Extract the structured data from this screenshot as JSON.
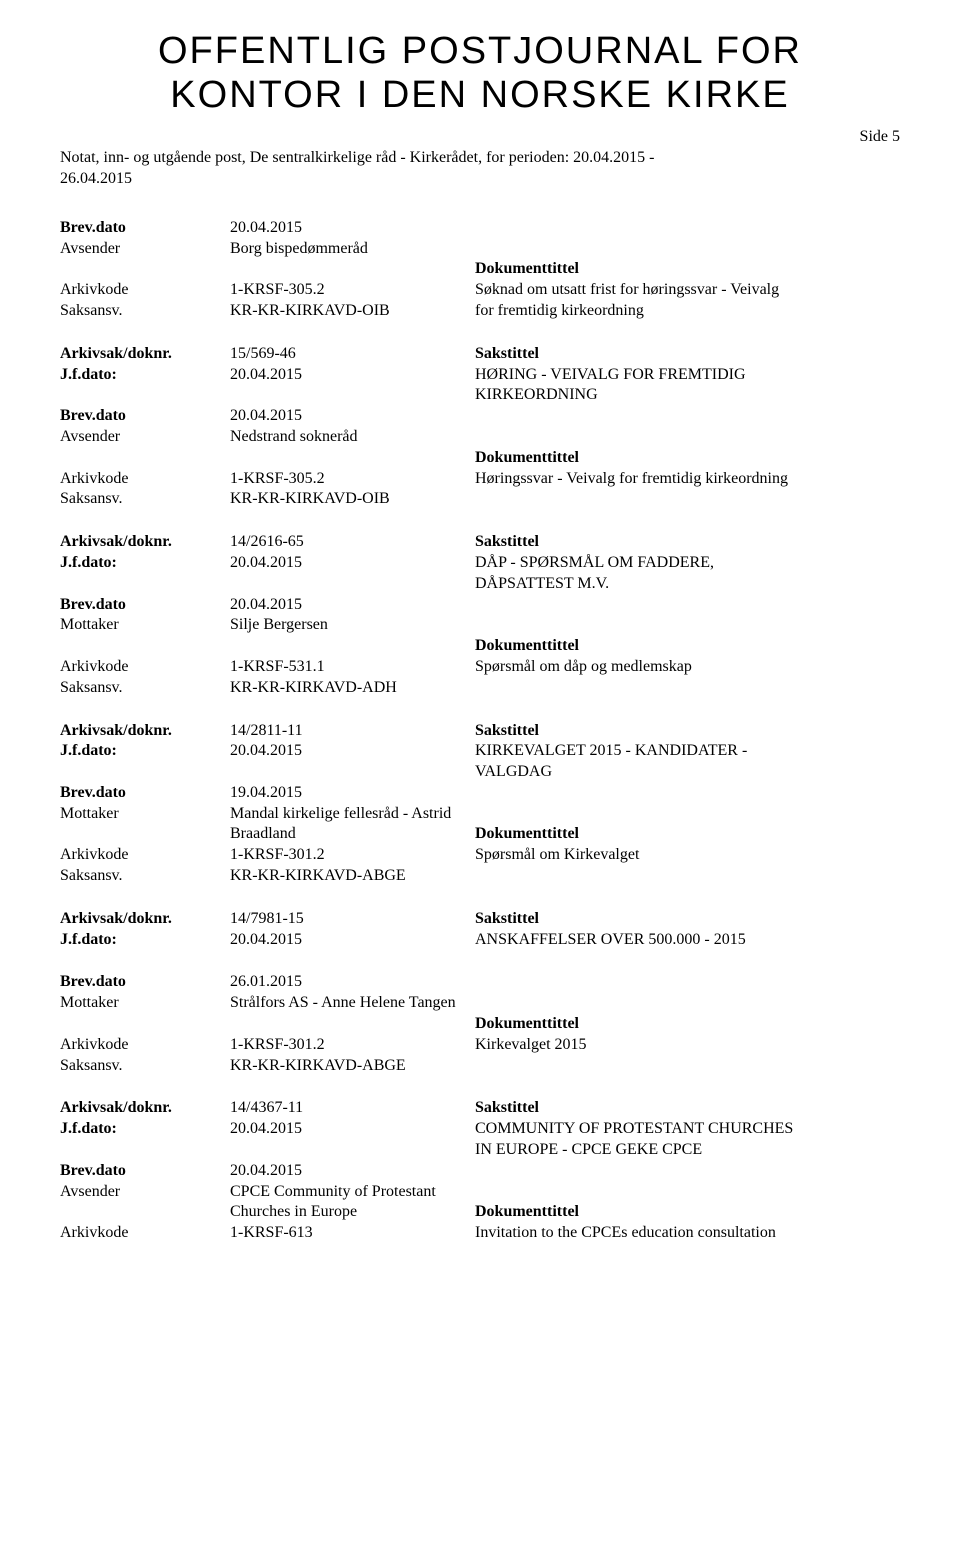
{
  "header": {
    "title_line1": "OFFENTLIG POSTJOURNAL FOR",
    "title_line2": "KONTOR I DEN NORSKE KIRKE",
    "page_label": "Side 5",
    "subtitle_line1": "Notat, inn- og utgående post, De sentralkirkelige råd - Kirkerådet, for perioden: 20.04.2015 -",
    "subtitle_line2": "26.04.2015"
  },
  "labels": {
    "brevdato": "Brev.dato",
    "avsender": "Avsender",
    "mottaker": "Mottaker",
    "arkivkode": "Arkivkode",
    "saksansv": "Saksansv.",
    "arkivsak": "Arkivsak/doknr.",
    "jfdato": "J.f.dato:",
    "sakstittel": "Sakstittel",
    "dokumenttittel": "Dokumenttittel"
  },
  "entries": [
    {
      "rows": [
        {
          "label": "brevdato",
          "bold": true,
          "value": "20.04.2015",
          "right": ""
        },
        {
          "label": "avsender",
          "bold": false,
          "value": "Borg bispedømmeråd",
          "right": ""
        },
        {
          "label": "",
          "bold": false,
          "value": "",
          "right_label": "dokumenttittel",
          "right_bold": true
        },
        {
          "label": "arkivkode",
          "bold": false,
          "value": "1-KRSF-305.2",
          "right": "Søknad om utsatt frist for høringssvar - Veivalg"
        },
        {
          "label": "saksansv",
          "bold": false,
          "value": "KR-KR-KIRKAVD-OIB",
          "right": "for fremtidig kirkeordning"
        }
      ]
    },
    {
      "rows": [
        {
          "label": "arkivsak",
          "bold": true,
          "value": "15/569-46",
          "right_label": "sakstittel",
          "right_bold": true
        },
        {
          "label": "jfdato",
          "bold": true,
          "value": "20.04.2015",
          "right": "HØRING - VEIVALG FOR FREMTIDIG"
        },
        {
          "label": "",
          "bold": false,
          "value": "",
          "right": "KIRKEORDNING"
        },
        {
          "label": "brevdato",
          "bold": true,
          "value": "20.04.2015",
          "right": ""
        },
        {
          "label": "avsender",
          "bold": false,
          "value": "Nedstrand sokneråd",
          "right": ""
        },
        {
          "label": "",
          "bold": false,
          "value": "",
          "right_label": "dokumenttittel",
          "right_bold": true
        },
        {
          "label": "arkivkode",
          "bold": false,
          "value": "1-KRSF-305.2",
          "right": "Høringssvar - Veivalg for fremtidig kirkeordning"
        },
        {
          "label": "saksansv",
          "bold": false,
          "value": "KR-KR-KIRKAVD-OIB",
          "right": ""
        }
      ]
    },
    {
      "rows": [
        {
          "label": "arkivsak",
          "bold": true,
          "value": "14/2616-65",
          "right_label": "sakstittel",
          "right_bold": true
        },
        {
          "label": "jfdato",
          "bold": true,
          "value": "20.04.2015",
          "right": "DÅP - SPØRSMÅL OM FADDERE,"
        },
        {
          "label": "",
          "bold": false,
          "value": "",
          "right": "DÅPSATTEST M.V."
        },
        {
          "label": "brevdato",
          "bold": true,
          "value": "20.04.2015",
          "right": ""
        },
        {
          "label": "mottaker",
          "bold": false,
          "value": "Silje Bergersen",
          "right": ""
        },
        {
          "label": "",
          "bold": false,
          "value": "",
          "right_label": "dokumenttittel",
          "right_bold": true
        },
        {
          "label": "arkivkode",
          "bold": false,
          "value": "1-KRSF-531.1",
          "right": "Spørsmål om dåp og medlemskap"
        },
        {
          "label": "saksansv",
          "bold": false,
          "value": "KR-KR-KIRKAVD-ADH",
          "right": ""
        }
      ]
    },
    {
      "rows": [
        {
          "label": "arkivsak",
          "bold": true,
          "value": "14/2811-11",
          "right_label": "sakstittel",
          "right_bold": true
        },
        {
          "label": "jfdato",
          "bold": true,
          "value": "20.04.2015",
          "right": "KIRKEVALGET 2015 - KANDIDATER -"
        },
        {
          "label": "",
          "bold": false,
          "value": "",
          "right": "VALGDAG"
        },
        {
          "label": "brevdato",
          "bold": true,
          "value": "19.04.2015",
          "right": ""
        },
        {
          "label": "mottaker",
          "bold": false,
          "value": "Mandal kirkelige fellesråd - Astrid",
          "right": ""
        },
        {
          "label": "",
          "bold": false,
          "value": "Braadland",
          "right_label": "dokumenttittel",
          "right_bold": true
        },
        {
          "label": "arkivkode",
          "bold": false,
          "value": "1-KRSF-301.2",
          "right": "Spørsmål om Kirkevalget"
        },
        {
          "label": "saksansv",
          "bold": false,
          "value": "KR-KR-KIRKAVD-ABGE",
          "right": ""
        }
      ]
    },
    {
      "rows": [
        {
          "label": "arkivsak",
          "bold": true,
          "value": "14/7981-15",
          "right_label": "sakstittel",
          "right_bold": true
        },
        {
          "label": "jfdato",
          "bold": true,
          "value": "20.04.2015",
          "right": "ANSKAFFELSER OVER 500.000 - 2015"
        }
      ]
    },
    {
      "rows": [
        {
          "label": "brevdato",
          "bold": true,
          "value": "26.01.2015",
          "right": ""
        },
        {
          "label": "mottaker",
          "bold": false,
          "value": "Strålfors AS - Anne Helene Tangen",
          "right": ""
        },
        {
          "label": "",
          "bold": false,
          "value": "",
          "right_label": "dokumenttittel",
          "right_bold": true
        },
        {
          "label": "arkivkode",
          "bold": false,
          "value": "1-KRSF-301.2",
          "right": "Kirkevalget 2015"
        },
        {
          "label": "saksansv",
          "bold": false,
          "value": "KR-KR-KIRKAVD-ABGE",
          "right": ""
        }
      ]
    },
    {
      "rows": [
        {
          "label": "arkivsak",
          "bold": true,
          "value": "14/4367-11",
          "right_label": "sakstittel",
          "right_bold": true
        },
        {
          "label": "jfdato",
          "bold": true,
          "value": "20.04.2015",
          "right": "COMMUNITY OF PROTESTANT CHURCHES"
        },
        {
          "label": "",
          "bold": false,
          "value": "",
          "right": "IN EUROPE - CPCE GEKE CPCE"
        },
        {
          "label": "brevdato",
          "bold": true,
          "value": "20.04.2015",
          "right": ""
        },
        {
          "label": "avsender",
          "bold": false,
          "value": "CPCE Community of Protestant",
          "right": ""
        },
        {
          "label": "",
          "bold": false,
          "value": "Churches in Europe",
          "right_label": "dokumenttittel",
          "right_bold": true
        },
        {
          "label": "arkivkode",
          "bold": false,
          "value": "1-KRSF-613",
          "right": "Invitation to the CPCEs education consultation"
        }
      ]
    }
  ]
}
